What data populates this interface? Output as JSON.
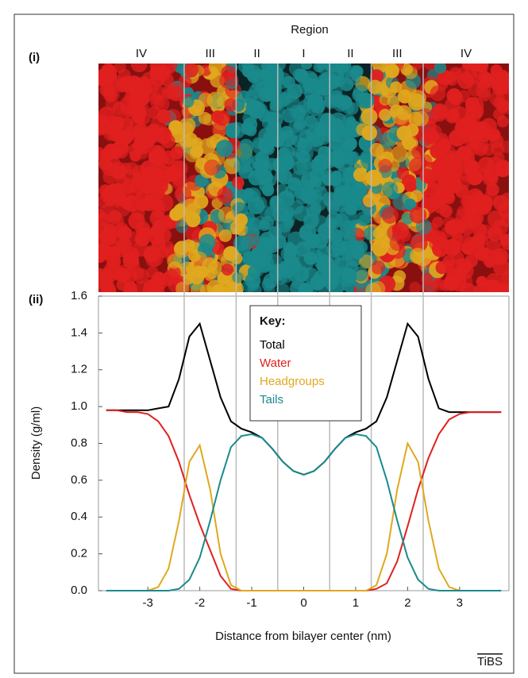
{
  "chart_data": {
    "type": "line",
    "panel_labels": [
      "(i)",
      "(ii)"
    ],
    "regions": {
      "title": "Region",
      "labels": [
        "IV",
        "III",
        "II",
        "I",
        "II",
        "III",
        "IV"
      ],
      "boundaries": [
        -2.3,
        -1.3,
        -0.5,
        0.5,
        1.3,
        2.3
      ]
    },
    "legend_title": "Key:",
    "x_label": "Distance from bilayer center (nm)",
    "y_label": "Density (g/ml)",
    "xlim": [
      -3.95,
      3.95
    ],
    "ylim": [
      0,
      1.6
    ],
    "xticks": [
      -3,
      -2,
      -1,
      0,
      1,
      2,
      3
    ],
    "yticks": [
      {
        "value": 0,
        "label": "0.0"
      },
      {
        "value": 0.2,
        "label": "0.2"
      },
      {
        "value": 0.4,
        "label": "0.4"
      },
      {
        "value": 0.6,
        "label": "0.6"
      },
      {
        "value": 0.8,
        "label": "0.8"
      },
      {
        "value": 1,
        "label": "1.0"
      },
      {
        "value": 1.2,
        "label": "1.2"
      },
      {
        "value": 1.4,
        "label": "1.4"
      },
      {
        "value": 1.6,
        "label": "1.6"
      }
    ],
    "x": [
      -3.8,
      -3.6,
      -3.4,
      -3.2,
      -3.0,
      -2.8,
      -2.6,
      -2.4,
      -2.2,
      -2.0,
      -1.8,
      -1.6,
      -1.4,
      -1.2,
      -1.0,
      -0.8,
      -0.6,
      -0.4,
      -0.2,
      0,
      0.2,
      0.4,
      0.6,
      0.8,
      1.0,
      1.2,
      1.4,
      1.6,
      1.8,
      2.0,
      2.2,
      2.4,
      2.6,
      2.8,
      3.0,
      3.2,
      3.4,
      3.6,
      3.8
    ],
    "series": [
      {
        "name": "Total",
        "color": "#000000",
        "values": [
          0.98,
          0.98,
          0.98,
          0.98,
          0.98,
          0.99,
          1.0,
          1.15,
          1.38,
          1.45,
          1.25,
          1.05,
          0.92,
          0.88,
          0.86,
          0.83,
          0.77,
          0.7,
          0.65,
          0.63,
          0.65,
          0.7,
          0.77,
          0.83,
          0.86,
          0.88,
          0.92,
          1.05,
          1.25,
          1.45,
          1.38,
          1.15,
          0.99,
          0.97,
          0.97,
          0.97,
          0.97,
          0.97,
          0.97
        ]
      },
      {
        "name": "Water",
        "color": "#e0201f",
        "values": [
          0.98,
          0.98,
          0.97,
          0.97,
          0.96,
          0.92,
          0.84,
          0.7,
          0.52,
          0.36,
          0.22,
          0.08,
          0.01,
          0,
          0,
          0,
          0,
          0,
          0,
          0,
          0,
          0,
          0,
          0,
          0,
          0,
          0.01,
          0.04,
          0.16,
          0.35,
          0.55,
          0.72,
          0.85,
          0.93,
          0.96,
          0.97,
          0.97,
          0.97,
          0.97
        ]
      },
      {
        "name": "Headgroups",
        "color": "#e0a81e",
        "values": [
          0,
          0,
          0,
          0,
          0,
          0.02,
          0.12,
          0.38,
          0.7,
          0.79,
          0.55,
          0.2,
          0.03,
          0,
          0,
          0,
          0,
          0,
          0,
          0,
          0,
          0,
          0,
          0,
          0,
          0,
          0.03,
          0.2,
          0.55,
          0.8,
          0.7,
          0.38,
          0.12,
          0.02,
          0,
          0,
          0,
          0,
          0
        ]
      },
      {
        "name": "Tails",
        "color": "#1a8a8c",
        "values": [
          0,
          0,
          0,
          0,
          0,
          0,
          0,
          0.01,
          0.06,
          0.18,
          0.38,
          0.6,
          0.78,
          0.84,
          0.85,
          0.83,
          0.77,
          0.7,
          0.65,
          0.63,
          0.65,
          0.7,
          0.77,
          0.83,
          0.85,
          0.84,
          0.78,
          0.6,
          0.38,
          0.18,
          0.06,
          0.01,
          0,
          0,
          0,
          0,
          0,
          0,
          0
        ]
      }
    ],
    "footer": "TiBS"
  }
}
